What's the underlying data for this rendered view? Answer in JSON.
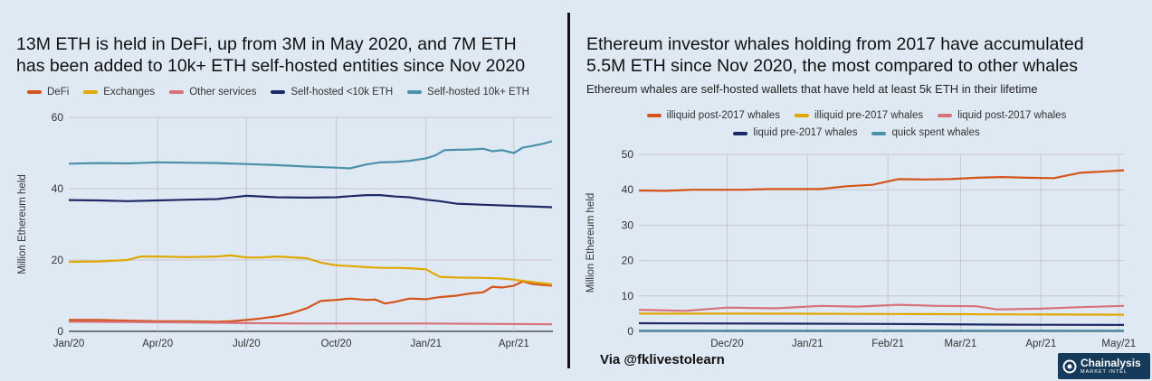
{
  "chart_data": [
    {
      "type": "line",
      "title": "13M ETH is held in DeFi, up from 3M in May 2020, and 7M ETH has been added to 10k+ ETH self-hosted entities since Nov 2020",
      "title_lines": [
        "13M ETH is held in DeFi, up from 3M in May 2020, and 7M ETH",
        "has been added to 10k+ ETH self-hosted entities since Nov 2020"
      ],
      "xlabel": "",
      "ylabel": "Million Ethereum held",
      "ylim": [
        0,
        60
      ],
      "yticks": [
        "0",
        "20",
        "40",
        "60"
      ],
      "xlim": [
        "2020-01-01",
        "2021-05-11"
      ],
      "xticks": [
        {
          "label": "Jan/20",
          "date": "2020-01-01"
        },
        {
          "label": "Apr/20",
          "date": "2020-04-01"
        },
        {
          "label": "Jul/20",
          "date": "2020-07-01"
        },
        {
          "label": "Oct/20",
          "date": "2020-10-01"
        },
        {
          "label": "Jan/21",
          "date": "2021-01-01"
        },
        {
          "label": "Apr/21",
          "date": "2021-04-01"
        }
      ],
      "grid": true,
      "legend_position": "top",
      "series": [
        {
          "name": "DeFi",
          "color": "#d4541a",
          "x": [
            "2020-01-01",
            "2020-02-01",
            "2020-03-01",
            "2020-04-01",
            "2020-05-01",
            "2020-06-01",
            "2020-06-15",
            "2020-07-01",
            "2020-07-15",
            "2020-08-01",
            "2020-08-15",
            "2020-09-01",
            "2020-09-15",
            "2020-10-01",
            "2020-10-15",
            "2020-11-01",
            "2020-11-10",
            "2020-11-20",
            "2020-12-01",
            "2020-12-15",
            "2021-01-01",
            "2021-01-15",
            "2021-02-01",
            "2021-02-15",
            "2021-03-01",
            "2021-03-10",
            "2021-03-20",
            "2021-04-01",
            "2021-04-10",
            "2021-04-20",
            "2021-05-01",
            "2021-05-10"
          ],
          "y": [
            3.2,
            3.2,
            3.0,
            2.8,
            2.8,
            2.7,
            2.8,
            3.2,
            3.6,
            4.2,
            5.0,
            6.5,
            8.5,
            8.8,
            9.2,
            8.8,
            8.9,
            7.8,
            8.3,
            9.2,
            9.0,
            9.6,
            10.0,
            10.6,
            11.0,
            12.5,
            12.3,
            12.8,
            14.0,
            13.3,
            13.0,
            12.8
          ]
        },
        {
          "name": "Exchanges",
          "color": "#e0a800",
          "x": [
            "2020-01-01",
            "2020-02-01",
            "2020-03-01",
            "2020-03-15",
            "2020-04-01",
            "2020-05-01",
            "2020-06-01",
            "2020-06-15",
            "2020-07-01",
            "2020-07-15",
            "2020-08-01",
            "2020-09-01",
            "2020-09-15",
            "2020-10-01",
            "2020-10-15",
            "2020-11-01",
            "2020-11-15",
            "2020-12-01",
            "2020-12-15",
            "2021-01-01",
            "2021-01-15",
            "2021-02-01",
            "2021-03-01",
            "2021-03-20",
            "2021-04-01",
            "2021-04-20",
            "2021-05-10"
          ],
          "y": [
            19.5,
            19.6,
            20.0,
            21.0,
            21.0,
            20.8,
            21.0,
            21.3,
            20.7,
            20.7,
            21.0,
            20.5,
            19.3,
            18.5,
            18.3,
            18.0,
            17.8,
            17.8,
            17.7,
            17.4,
            15.3,
            15.1,
            15.0,
            14.8,
            14.5,
            13.8,
            13.2
          ]
        },
        {
          "name": "Other services",
          "color": "#d8727a",
          "x": [
            "2020-01-01",
            "2020-03-01",
            "2020-05-01",
            "2020-07-01",
            "2020-09-01",
            "2020-11-01",
            "2021-01-01",
            "2021-03-01",
            "2021-05-10"
          ],
          "y": [
            2.7,
            2.6,
            2.5,
            2.3,
            2.2,
            2.2,
            2.2,
            2.1,
            2.0
          ]
        },
        {
          "name": "Self-hosted <10k ETH",
          "color": "#1e2a66",
          "x": [
            "2020-01-01",
            "2020-02-01",
            "2020-03-01",
            "2020-04-01",
            "2020-05-01",
            "2020-06-01",
            "2020-07-01",
            "2020-08-01",
            "2020-09-01",
            "2020-10-01",
            "2020-10-15",
            "2020-11-01",
            "2020-11-15",
            "2020-12-01",
            "2020-12-15",
            "2021-01-01",
            "2021-01-15",
            "2021-02-01",
            "2021-03-01",
            "2021-04-01",
            "2021-05-10"
          ],
          "y": [
            36.8,
            36.7,
            36.5,
            36.7,
            36.9,
            37.1,
            38.0,
            37.6,
            37.5,
            37.6,
            37.9,
            38.2,
            38.2,
            37.8,
            37.6,
            36.9,
            36.5,
            35.8,
            35.5,
            35.2,
            34.8
          ]
        },
        {
          "name": "Self-hosted 10k+ ETH",
          "color": "#4a90a8",
          "x": [
            "2020-01-01",
            "2020-02-01",
            "2020-03-01",
            "2020-04-01",
            "2020-05-01",
            "2020-06-01",
            "2020-07-01",
            "2020-08-01",
            "2020-09-01",
            "2020-10-01",
            "2020-10-15",
            "2020-11-01",
            "2020-11-15",
            "2020-12-01",
            "2020-12-15",
            "2021-01-01",
            "2021-01-10",
            "2021-01-20",
            "2021-02-01",
            "2021-02-15",
            "2021-03-01",
            "2021-03-10",
            "2021-03-20",
            "2021-04-01",
            "2021-04-10",
            "2021-04-20",
            "2021-05-01",
            "2021-05-10"
          ],
          "y": [
            47.0,
            47.2,
            47.1,
            47.4,
            47.3,
            47.2,
            46.9,
            46.6,
            46.2,
            45.9,
            45.7,
            46.8,
            47.4,
            47.5,
            47.8,
            48.5,
            49.3,
            50.8,
            50.9,
            51.0,
            51.2,
            50.5,
            50.8,
            50.0,
            51.5,
            52.0,
            52.6,
            53.3
          ]
        }
      ]
    },
    {
      "type": "line",
      "title": "Ethereum investor whales holding from 2017 have accumulated 5.5M ETH since Nov 2020, the most compared to other whales",
      "title_lines": [
        "Ethereum investor whales holding from 2017 have accumulated",
        "5.5M ETH since Nov 2020, the most compared to other whales"
      ],
      "subtitle": "Ethereum whales are self-hosted wallets that have held at least 5k ETH in their lifetime",
      "xlabel": "",
      "ylabel": "Million Ethereum held",
      "ylim": [
        0,
        50
      ],
      "yticks": [
        "0",
        "10",
        "20",
        "30",
        "40",
        "50"
      ],
      "xlim": [
        "2020-10-28",
        "2021-05-03"
      ],
      "xticks": [
        {
          "label": "Dec/20",
          "date": "2020-12-01"
        },
        {
          "label": "Jan/21",
          "date": "2021-01-01"
        },
        {
          "label": "Feb/21",
          "date": "2021-02-01"
        },
        {
          "label": "Mar/21",
          "date": "2021-03-01"
        },
        {
          "label": "Apr/21",
          "date": "2021-04-01"
        },
        {
          "label": "May/21",
          "date": "2021-05-01"
        }
      ],
      "grid": true,
      "legend_position": "top",
      "series": [
        {
          "name": "illiquid post-2017 whales",
          "color": "#d4541a",
          "x": [
            "2020-10-28",
            "2020-11-07",
            "2020-11-17",
            "2020-11-27",
            "2020-12-07",
            "2020-12-17",
            "2020-12-27",
            "2021-01-06",
            "2021-01-16",
            "2021-01-26",
            "2021-02-05",
            "2021-02-15",
            "2021-02-25",
            "2021-03-07",
            "2021-03-17",
            "2021-03-27",
            "2021-04-06",
            "2021-04-16",
            "2021-04-26",
            "2021-05-03"
          ],
          "y": [
            39.8,
            39.7,
            40.0,
            40.0,
            40.0,
            40.2,
            40.2,
            40.2,
            41.0,
            41.4,
            43.0,
            42.9,
            43.0,
            43.4,
            43.6,
            43.4,
            43.3,
            44.8,
            45.2,
            45.5
          ]
        },
        {
          "name": "illiquid pre-2017 whales",
          "color": "#e0a800",
          "x": [
            "2020-10-28",
            "2020-12-15",
            "2021-02-01",
            "2021-03-20",
            "2021-05-03"
          ],
          "y": [
            5.0,
            5.0,
            4.9,
            4.8,
            4.7
          ]
        },
        {
          "name": "liquid post-2017 whales",
          "color": "#d8727a",
          "x": [
            "2020-10-28",
            "2020-11-15",
            "2020-12-01",
            "2020-12-20",
            "2021-01-06",
            "2021-01-20",
            "2021-02-05",
            "2021-02-20",
            "2021-03-07",
            "2021-03-15",
            "2021-04-01",
            "2021-04-15",
            "2021-05-03"
          ],
          "y": [
            6.1,
            5.8,
            6.7,
            6.5,
            7.2,
            7.0,
            7.5,
            7.2,
            7.1,
            6.2,
            6.4,
            6.8,
            7.2
          ]
        },
        {
          "name": "liquid pre-2017 whales",
          "color": "#1e2a66",
          "x": [
            "2020-10-28",
            "2020-12-15",
            "2021-02-01",
            "2021-03-20",
            "2021-05-03"
          ],
          "y": [
            2.3,
            2.2,
            2.1,
            1.9,
            1.8
          ]
        },
        {
          "name": "quick spent whales",
          "color": "#4a90a8",
          "x": [
            "2020-10-28",
            "2020-12-15",
            "2021-02-01",
            "2021-03-20",
            "2021-05-03"
          ],
          "y": [
            0.2,
            0.2,
            0.2,
            0.2,
            0.2
          ]
        }
      ]
    }
  ],
  "credit": "Via @fklivestolearn",
  "logo": {
    "name": "Chainalysis",
    "tagline": "MARKET INTEL"
  }
}
